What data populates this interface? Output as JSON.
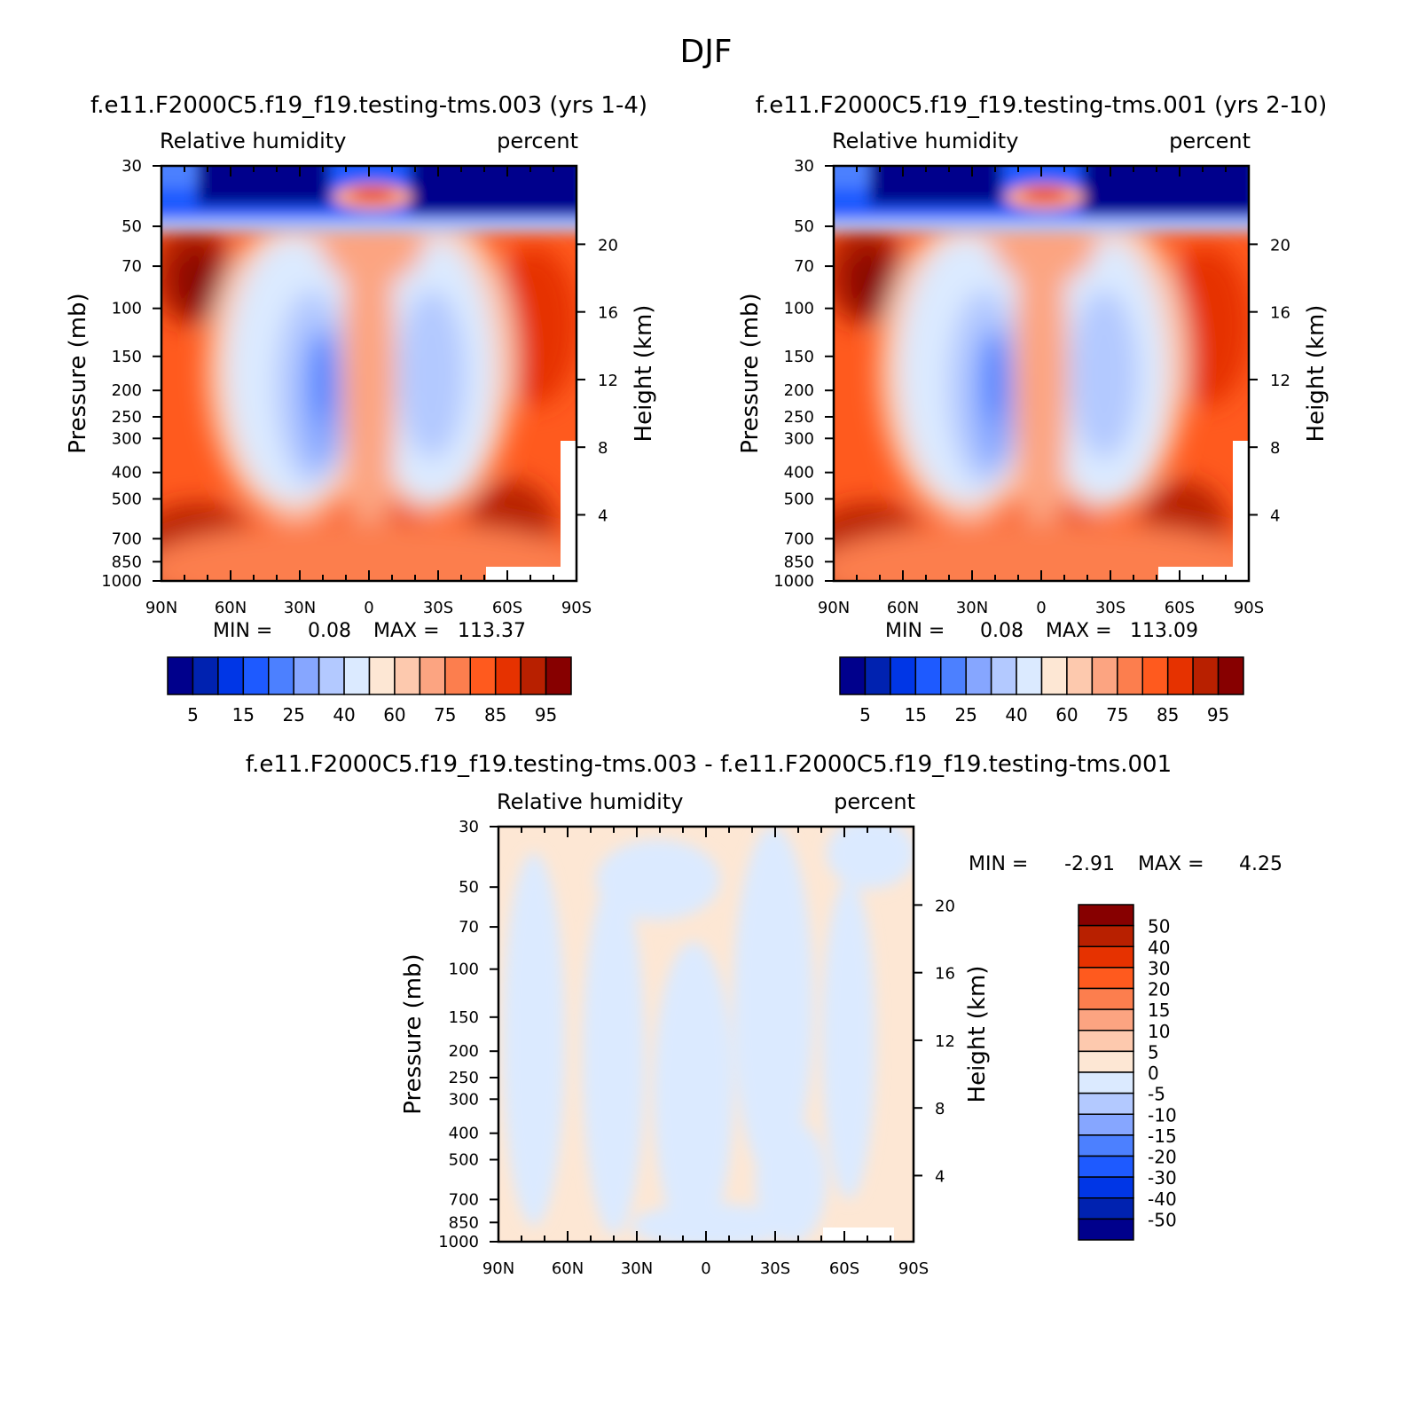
{
  "figure_title": "DJF",
  "colors": {
    "rh_levels": [
      "#00008c",
      "#0022b0",
      "#0036e6",
      "#1e5aff",
      "#4c80ff",
      "#86a6ff",
      "#b3c9ff",
      "#dbeaff",
      "#fde7d4",
      "#fdc9ae",
      "#fca481",
      "#fc7e4e",
      "#ff5a1e",
      "#e63200",
      "#b82000",
      "#870000"
    ],
    "diff_levels": [
      "#00008c",
      "#0022b0",
      "#0036e6",
      "#1e5aff",
      "#4c80ff",
      "#86a6ff",
      "#b3c9ff",
      "#dbeaff",
      "#fde7d4",
      "#fdc9ae",
      "#fca481",
      "#fc7e4e",
      "#ff5a1e",
      "#e63200",
      "#b82000",
      "#870000"
    ]
  },
  "chart_data": [
    {
      "type": "heatmap",
      "case_title": "f.e11.F2000C5.f19_f19.testing-tms.003 (yrs 1-4)",
      "left_label": "Relative humidity",
      "right_label": "percent",
      "ylabel": "Pressure (mb)",
      "ylabel_right": "Height (km)",
      "x_ticks": [
        "90N",
        "60N",
        "30N",
        "0",
        "30S",
        "60S",
        "90S"
      ],
      "y_ticks": [
        "30",
        "50",
        "70",
        "100",
        "150",
        "200",
        "250",
        "300",
        "400",
        "500",
        "700",
        "850",
        "1000"
      ],
      "y_ticks_right": [
        "20",
        "16",
        "12",
        "8",
        "4"
      ],
      "ylim": [
        1000,
        30
      ],
      "min_label": "MIN =",
      "min_value": "0.08",
      "max_label": "MAX =",
      "max_value": "113.37",
      "colorbar_labels": [
        "5",
        "15",
        "25",
        "40",
        "60",
        "75",
        "85",
        "95"
      ]
    },
    {
      "type": "heatmap",
      "case_title": "f.e11.F2000C5.f19_f19.testing-tms.001 (yrs 2-10)",
      "left_label": "Relative humidity",
      "right_label": "percent",
      "ylabel": "Pressure (mb)",
      "ylabel_right": "Height (km)",
      "x_ticks": [
        "90N",
        "60N",
        "30N",
        "0",
        "30S",
        "60S",
        "90S"
      ],
      "y_ticks": [
        "30",
        "50",
        "70",
        "100",
        "150",
        "200",
        "250",
        "300",
        "400",
        "500",
        "700",
        "850",
        "1000"
      ],
      "y_ticks_right": [
        "20",
        "16",
        "12",
        "8",
        "4"
      ],
      "ylim": [
        1000,
        30
      ],
      "min_label": "MIN =",
      "min_value": "0.08",
      "max_label": "MAX =",
      "max_value": "113.09",
      "colorbar_labels": [
        "5",
        "15",
        "25",
        "40",
        "60",
        "75",
        "85",
        "95"
      ]
    },
    {
      "type": "heatmap",
      "case_title": "f.e11.F2000C5.f19_f19.testing-tms.003 - f.e11.F2000C5.f19_f19.testing-tms.001",
      "left_label": "Relative humidity",
      "right_label": "percent",
      "ylabel": "Pressure (mb)",
      "ylabel_right": "Height (km)",
      "x_ticks": [
        "90N",
        "60N",
        "30N",
        "0",
        "30S",
        "60S",
        "90S"
      ],
      "y_ticks": [
        "30",
        "50",
        "70",
        "100",
        "150",
        "200",
        "250",
        "300",
        "400",
        "500",
        "700",
        "850",
        "1000"
      ],
      "y_ticks_right": [
        "20",
        "16",
        "12",
        "8",
        "4"
      ],
      "ylim": [
        1000,
        30
      ],
      "min_label": "MIN =",
      "min_value": "-2.91",
      "max_label": "MAX =",
      "max_value": "4.25",
      "colorbar_labels": [
        "50",
        "40",
        "30",
        "20",
        "15",
        "10",
        "5",
        "0",
        "-5",
        "-10",
        "-15",
        "-20",
        "-30",
        "-40",
        "-50"
      ]
    }
  ]
}
